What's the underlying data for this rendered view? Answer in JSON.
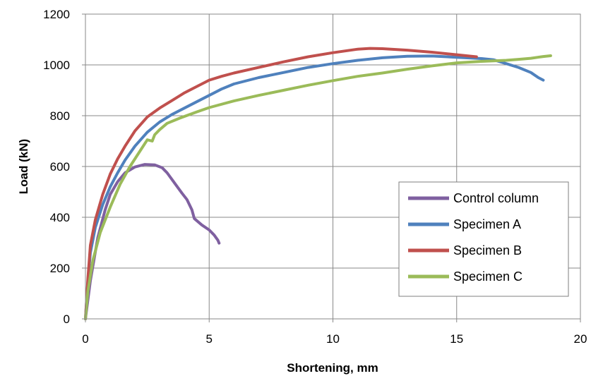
{
  "chart_data": {
    "type": "line",
    "title": "",
    "xlabel": "Shortening, mm",
    "ylabel": "Load (kN)",
    "xlim": [
      0,
      20
    ],
    "ylim": [
      0,
      1200
    ],
    "xticks": [
      "0",
      "5",
      "10",
      "15",
      "20"
    ],
    "yticks": [
      "0",
      "200",
      "400",
      "600",
      "800",
      "1000",
      "1200"
    ],
    "grid": true,
    "legend_position": "bottom-right",
    "series": [
      {
        "name": "Control column",
        "color": "#7f60a0",
        "points": [
          [
            0,
            0
          ],
          [
            0.2,
            150
          ],
          [
            0.5,
            320
          ],
          [
            0.8,
            430
          ],
          [
            1.0,
            490
          ],
          [
            1.3,
            540
          ],
          [
            1.6,
            575
          ],
          [
            2.0,
            598
          ],
          [
            2.4,
            608
          ],
          [
            2.8,
            606
          ],
          [
            3.1,
            595
          ],
          [
            3.3,
            575
          ],
          [
            3.6,
            535
          ],
          [
            3.9,
            495
          ],
          [
            4.1,
            470
          ],
          [
            4.3,
            430
          ],
          [
            4.4,
            395
          ],
          [
            4.7,
            370
          ],
          [
            5.0,
            350
          ],
          [
            5.2,
            330
          ],
          [
            5.35,
            310
          ],
          [
            5.4,
            298
          ]
        ]
      },
      {
        "name": "Specimen A",
        "color": "#4f81bd",
        "points": [
          [
            0,
            0
          ],
          [
            0.1,
            150
          ],
          [
            0.2,
            260
          ],
          [
            0.4,
            360
          ],
          [
            0.7,
            450
          ],
          [
            1.0,
            520
          ],
          [
            1.3,
            575
          ],
          [
            1.6,
            625
          ],
          [
            2.0,
            680
          ],
          [
            2.5,
            735
          ],
          [
            3.0,
            775
          ],
          [
            3.5,
            805
          ],
          [
            4.0,
            830
          ],
          [
            4.5,
            855
          ],
          [
            5.0,
            880
          ],
          [
            5.5,
            905
          ],
          [
            6.0,
            925
          ],
          [
            7.0,
            950
          ],
          [
            8.0,
            970
          ],
          [
            9.0,
            990
          ],
          [
            10.0,
            1005
          ],
          [
            11.0,
            1018
          ],
          [
            12.0,
            1028
          ],
          [
            13.0,
            1034
          ],
          [
            14.0,
            1035
          ],
          [
            15.0,
            1030
          ],
          [
            16.0,
            1025
          ],
          [
            16.5,
            1020
          ],
          [
            17.0,
            1005
          ],
          [
            17.5,
            990
          ],
          [
            18.0,
            970
          ],
          [
            18.3,
            950
          ],
          [
            18.5,
            940
          ]
        ]
      },
      {
        "name": "Specimen B",
        "color": "#c0504d",
        "points": [
          [
            0,
            0
          ],
          [
            0.1,
            160
          ],
          [
            0.2,
            290
          ],
          [
            0.4,
            390
          ],
          [
            0.7,
            490
          ],
          [
            1.0,
            570
          ],
          [
            1.3,
            630
          ],
          [
            1.6,
            680
          ],
          [
            2.0,
            740
          ],
          [
            2.5,
            795
          ],
          [
            3.0,
            830
          ],
          [
            3.5,
            860
          ],
          [
            4.0,
            890
          ],
          [
            4.5,
            915
          ],
          [
            5.0,
            940
          ],
          [
            5.5,
            955
          ],
          [
            6.0,
            968
          ],
          [
            7.0,
            990
          ],
          [
            8.0,
            1012
          ],
          [
            9.0,
            1032
          ],
          [
            10.0,
            1048
          ],
          [
            11.0,
            1062
          ],
          [
            11.5,
            1065
          ],
          [
            12.0,
            1064
          ],
          [
            13.0,
            1058
          ],
          [
            14.0,
            1050
          ],
          [
            15.0,
            1040
          ],
          [
            15.8,
            1032
          ]
        ]
      },
      {
        "name": "Specimen C",
        "color": "#9bbb59",
        "points": [
          [
            0,
            0
          ],
          [
            0.1,
            110
          ],
          [
            0.3,
            230
          ],
          [
            0.6,
            340
          ],
          [
            1.0,
            440
          ],
          [
            1.4,
            530
          ],
          [
            1.8,
            600
          ],
          [
            2.2,
            660
          ],
          [
            2.5,
            705
          ],
          [
            2.7,
            700
          ],
          [
            2.8,
            725
          ],
          [
            3.0,
            745
          ],
          [
            3.3,
            770
          ],
          [
            3.8,
            790
          ],
          [
            4.5,
            815
          ],
          [
            5.0,
            832
          ],
          [
            6.0,
            858
          ],
          [
            7.0,
            880
          ],
          [
            8.0,
            900
          ],
          [
            9.0,
            920
          ],
          [
            10.0,
            938
          ],
          [
            11.0,
            955
          ],
          [
            12.0,
            968
          ],
          [
            13.0,
            983
          ],
          [
            14.0,
            996
          ],
          [
            15.0,
            1008
          ],
          [
            16.0,
            1014
          ],
          [
            17.0,
            1018
          ],
          [
            17.5,
            1022
          ],
          [
            18.0,
            1026
          ],
          [
            18.5,
            1033
          ],
          [
            18.8,
            1036
          ]
        ]
      }
    ]
  }
}
